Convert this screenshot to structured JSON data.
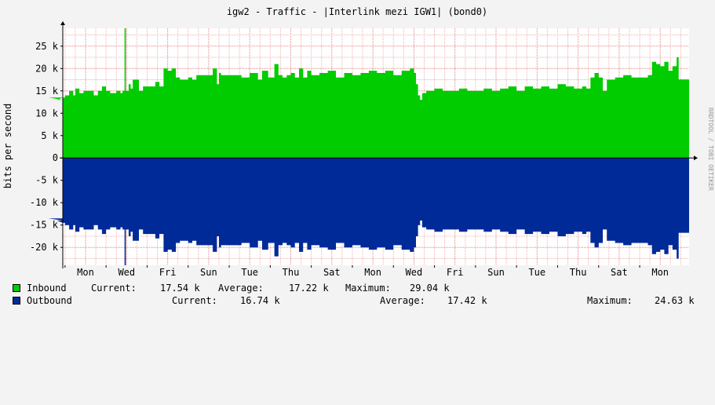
{
  "chart_data": {
    "type": "area",
    "title": "igw2 - Traffic - |Interlink mezi IGW1| (bond0)",
    "ylabel": "bits per second",
    "watermark": "RRDTOOL / TOBI OETIKER",
    "ylim": [
      -24000,
      29000
    ],
    "y_ticks": [
      {
        "value": 25000,
        "label": "25 k"
      },
      {
        "value": 20000,
        "label": "20 k"
      },
      {
        "value": 15000,
        "label": "15 k"
      },
      {
        "value": 10000,
        "label": "10 k"
      },
      {
        "value": 5000,
        "label": "5 k"
      },
      {
        "value": 0,
        "label": "0"
      },
      {
        "value": -5000,
        "label": "-5 k"
      },
      {
        "value": -10000,
        "label": "-10 k"
      },
      {
        "value": -15000,
        "label": "-15 k"
      },
      {
        "value": -20000,
        "label": "-20 k"
      }
    ],
    "x_range_days": [
      0,
      15.5
    ],
    "day_ticks": [
      {
        "day": 1,
        "label": "Mon"
      },
      {
        "day": 2,
        "label": "Wed"
      },
      {
        "day": 3,
        "label": "Fri"
      },
      {
        "day": 4,
        "label": "Sun"
      },
      {
        "day": 5,
        "label": "Tue"
      },
      {
        "day": 6,
        "label": "Thu"
      },
      {
        "day": 7,
        "label": "Sat"
      },
      {
        "day": 8,
        "label": "Mon"
      },
      {
        "day": 9,
        "label": "Wed"
      },
      {
        "day": 10,
        "label": "Fri"
      },
      {
        "day": 11,
        "label": "Sun"
      },
      {
        "day": 12,
        "label": "Tue"
      },
      {
        "day": 13,
        "label": "Thu"
      },
      {
        "day": 14,
        "label": "Sat"
      },
      {
        "day": 15,
        "label": "Mon"
      }
    ],
    "grid": true,
    "colors": {
      "inbound": "#00cc00",
      "outbound": "#002a97",
      "grid_major": "#e08080",
      "grid_minor": "#f0b0b0",
      "plot_bg": "#ffffff",
      "page_bg": "#f3f3f3"
    },
    "series": [
      {
        "name": "Inbound",
        "x": [
          0.0,
          0.1,
          0.3,
          0.5,
          0.6,
          0.7,
          0.75,
          0.85,
          0.95,
          1.1,
          1.2,
          1.3,
          1.4,
          1.5,
          1.6,
          1.75,
          1.85,
          1.9,
          1.95,
          1.98,
          2.0,
          2.05,
          2.1,
          2.15,
          2.3,
          2.4,
          2.6,
          2.7,
          2.8,
          2.9,
          3.0,
          3.1,
          3.2,
          3.3,
          3.4,
          3.5,
          3.6,
          3.7,
          3.9,
          4.1,
          4.2,
          4.25,
          4.3,
          4.4,
          4.5,
          4.6,
          4.8,
          5.0,
          5.2,
          5.3,
          5.45,
          5.55,
          5.6,
          5.7,
          5.8,
          5.9,
          6.0,
          6.1,
          6.2,
          6.3,
          6.4,
          6.5,
          6.7,
          6.9,
          7.1,
          7.3,
          7.5,
          7.7,
          7.9,
          8.1,
          8.3,
          8.5,
          8.7,
          8.9,
          9.0,
          9.05,
          9.1,
          9.15,
          9.2,
          9.3,
          9.4,
          9.5,
          9.7,
          9.9,
          10.1,
          10.3,
          10.5,
          10.7,
          10.9,
          11.1,
          11.3,
          11.5,
          11.7,
          11.9,
          12.1,
          12.3,
          12.5,
          12.7,
          12.9,
          13.1,
          13.2,
          13.3,
          13.4,
          13.5,
          13.6,
          13.7,
          13.9,
          14.1,
          14.3,
          14.5,
          14.7,
          14.8,
          14.9,
          15.0,
          15.1,
          15.2,
          15.3,
          15.4,
          15.45
        ],
        "y": [
          13500,
          13000,
          13500,
          14000,
          15000,
          14000,
          15500,
          14500,
          15000,
          15000,
          14000,
          15000,
          16000,
          15000,
          14500,
          15000,
          14500,
          15000,
          29000,
          15000,
          15000,
          16500,
          15500,
          17500,
          15000,
          16000,
          16000,
          17000,
          16000,
          20000,
          19500,
          20000,
          18000,
          17500,
          17500,
          18000,
          17500,
          18500,
          18500,
          20000,
          16500,
          19000,
          18500,
          18500,
          18500,
          18500,
          18000,
          19000,
          17500,
          19500,
          18000,
          18000,
          21000,
          18500,
          18000,
          18500,
          19000,
          18000,
          20000,
          18000,
          19500,
          18500,
          19000,
          19500,
          18000,
          19000,
          18500,
          19000,
          19500,
          19000,
          19500,
          18500,
          19500,
          20000,
          19000,
          16500,
          14000,
          13000,
          14500,
          15000,
          15000,
          15500,
          15000,
          15000,
          15500,
          15000,
          15000,
          15500,
          15000,
          15500,
          16000,
          15000,
          16000,
          15500,
          16000,
          15500,
          16500,
          16000,
          15500,
          16000,
          15500,
          18000,
          19000,
          18000,
          15000,
          17500,
          18000,
          18500,
          18000,
          18000,
          18500,
          21500,
          21000,
          20500,
          21500,
          19500,
          20500,
          22500,
          17540
        ]
      },
      {
        "name": "Outbound",
        "x": [
          0.0,
          0.1,
          0.3,
          0.5,
          0.6,
          0.7,
          0.75,
          0.85,
          0.95,
          1.1,
          1.2,
          1.3,
          1.4,
          1.5,
          1.6,
          1.75,
          1.85,
          1.9,
          1.95,
          1.98,
          2.0,
          2.05,
          2.1,
          2.15,
          2.3,
          2.4,
          2.6,
          2.7,
          2.8,
          2.9,
          3.0,
          3.1,
          3.2,
          3.3,
          3.4,
          3.5,
          3.6,
          3.7,
          3.9,
          4.1,
          4.2,
          4.25,
          4.3,
          4.4,
          4.5,
          4.6,
          4.8,
          5.0,
          5.2,
          5.3,
          5.45,
          5.55,
          5.6,
          5.7,
          5.8,
          5.9,
          6.0,
          6.1,
          6.2,
          6.3,
          6.4,
          6.5,
          6.7,
          6.9,
          7.1,
          7.3,
          7.5,
          7.7,
          7.9,
          8.1,
          8.3,
          8.5,
          8.7,
          8.9,
          9.0,
          9.05,
          9.1,
          9.15,
          9.2,
          9.3,
          9.4,
          9.5,
          9.7,
          9.9,
          10.1,
          10.3,
          10.5,
          10.7,
          10.9,
          11.1,
          11.3,
          11.5,
          11.7,
          11.9,
          12.1,
          12.3,
          12.5,
          12.7,
          12.9,
          13.1,
          13.2,
          13.3,
          13.4,
          13.5,
          13.6,
          13.7,
          13.9,
          14.1,
          14.3,
          14.5,
          14.7,
          14.8,
          14.9,
          15.0,
          15.1,
          15.2,
          15.3,
          15.4,
          15.45
        ],
        "y": [
          -13500,
          -14000,
          -14500,
          -15000,
          -16000,
          -15000,
          -16500,
          -15500,
          -16000,
          -16000,
          -15000,
          -16000,
          -17000,
          -16000,
          -15500,
          -16000,
          -15500,
          -16000,
          -24000,
          -16000,
          -16000,
          -17500,
          -16500,
          -18500,
          -16000,
          -17000,
          -17000,
          -18000,
          -17000,
          -21000,
          -20500,
          -21000,
          -19000,
          -18500,
          -18500,
          -19000,
          -18500,
          -19500,
          -19500,
          -21000,
          -17500,
          -20000,
          -19500,
          -19500,
          -19500,
          -19500,
          -19000,
          -20000,
          -18500,
          -20500,
          -19000,
          -19000,
          -22000,
          -19500,
          -19000,
          -19500,
          -20000,
          -19000,
          -21000,
          -19000,
          -20500,
          -19500,
          -20000,
          -20500,
          -19000,
          -20000,
          -19500,
          -20000,
          -20500,
          -20000,
          -20500,
          -19500,
          -20500,
          -21000,
          -20000,
          -17500,
          -15000,
          -14000,
          -15500,
          -16000,
          -16000,
          -16500,
          -16000,
          -16000,
          -16500,
          -16000,
          -16000,
          -16500,
          -16000,
          -16500,
          -17000,
          -16000,
          -17000,
          -16500,
          -17000,
          -16500,
          -17500,
          -17000,
          -16500,
          -17000,
          -16500,
          -19000,
          -20000,
          -19000,
          -16000,
          -18500,
          -19000,
          -19500,
          -19000,
          -19000,
          -19500,
          -21500,
          -21000,
          -20500,
          -21500,
          -19500,
          -20500,
          -22500,
          -16740
        ]
      }
    ],
    "legend": [
      {
        "name": "Inbound",
        "current_label": "Current:",
        "current": "17.54 k",
        "average_label": "Average:",
        "average": "17.22 k",
        "maximum_label": "Maximum:",
        "maximum": "29.04 k"
      },
      {
        "name": "Outbound",
        "current_label": "Current:",
        "current": "16.74 k",
        "average_label": "Average:",
        "average": "17.42 k",
        "maximum_label": "Maximum:",
        "maximum": "24.63 k"
      }
    ]
  }
}
